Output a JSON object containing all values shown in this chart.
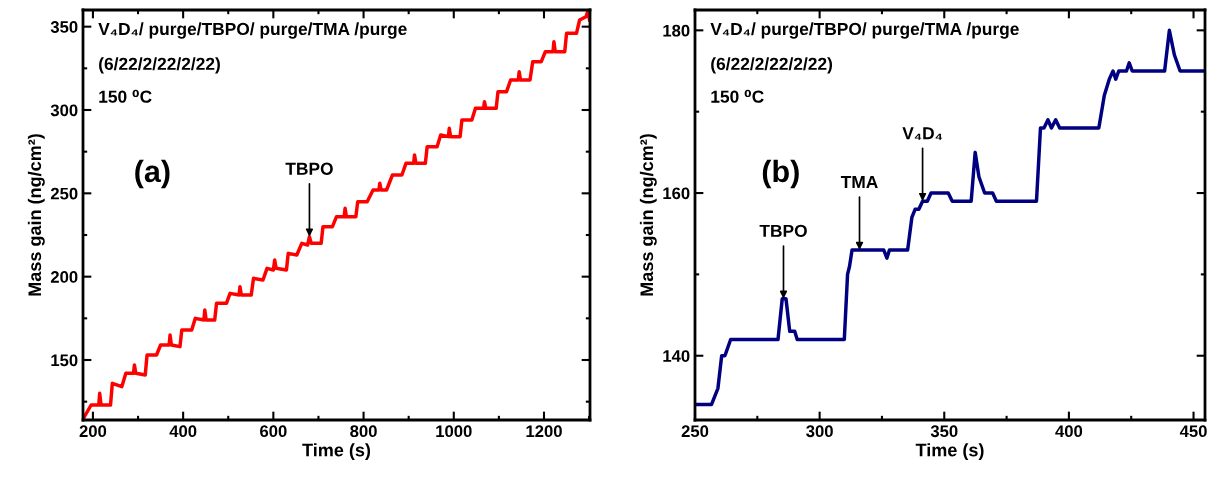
{
  "chart_data": [
    {
      "type": "line",
      "xlabel": "Time (s)",
      "ylabel": "Mass gain (ng/cm²)",
      "annotations": [
        "V₄D₄/ purge/TBPO/ purge/TMA /purge",
        "(6/22/2/22/2/22)",
        "150 ⁰C",
        "(a)",
        {
          "text": "TBPO",
          "x": 680,
          "y": 224
        }
      ],
      "series": [
        {
          "color": "#ff0000",
          "x": [
            179,
            196,
            213,
            215,
            218,
            239,
            243,
            264,
            273,
            290,
            292,
            295,
            316,
            320,
            341,
            350,
            369,
            371,
            374,
            393,
            397,
            419,
            427,
            446,
            448,
            451,
            470,
            474,
            496,
            504,
            524,
            526,
            529,
            551,
            556,
            577,
            586,
            600,
            603,
            606,
            629,
            633,
            652,
            663,
            676,
            680,
            684,
            706,
            710,
            731,
            740,
            757,
            759,
            762,
            783,
            787,
            808,
            821,
            834,
            836,
            839,
            851,
            864,
            885,
            894,
            911,
            913,
            916,
            937,
            941,
            963,
            971,
            988,
            990,
            993,
            1014,
            1018,
            1040,
            1048,
            1066,
            1068,
            1071,
            1094,
            1098,
            1117,
            1126,
            1143,
            1145,
            1148,
            1169,
            1175,
            1194,
            1203,
            1220,
            1222,
            1225,
            1246,
            1250,
            1272,
            1279,
            1293,
            1297,
            1301
          ],
          "values": [
            115,
            123,
            123,
            130,
            123,
            123,
            136,
            134,
            142,
            142,
            147,
            142,
            141,
            153,
            153,
            159,
            159,
            165,
            159,
            158,
            168,
            168,
            175,
            174,
            180,
            174,
            174,
            184,
            184,
            190,
            189,
            194,
            189,
            189,
            199,
            198,
            205,
            204,
            210,
            205,
            204,
            214,
            213,
            220,
            219,
            224,
            220,
            220,
            230,
            230,
            236,
            236,
            241,
            236,
            236,
            245,
            245,
            252,
            252,
            256,
            252,
            252,
            261,
            261,
            268,
            268,
            273,
            268,
            268,
            278,
            278,
            285,
            284,
            289,
            284,
            284,
            294,
            294,
            301,
            301,
            305,
            301,
            301,
            311,
            311,
            318,
            318,
            323,
            318,
            318,
            329,
            329,
            335,
            335,
            341,
            335,
            335,
            346,
            346,
            354,
            356,
            359,
            354
          ]
        }
      ],
      "xlim": [
        178,
        1302
      ],
      "ylim": [
        114,
        360
      ],
      "xticks": [
        200,
        {
          "value": 300,
          "label": null
        },
        400,
        {
          "value": 500,
          "label": null
        },
        600,
        {
          "value": 700,
          "label": null
        },
        800,
        {
          "value": 900,
          "label": null
        },
        1000,
        {
          "value": 1100,
          "label": null
        },
        1200,
        {
          "value": 1300,
          "label": null
        }
      ],
      "yticks": [
        {
          "value": 125,
          "label": null
        },
        150,
        {
          "value": 175,
          "label": null
        },
        200,
        {
          "value": 225,
          "label": null
        },
        250,
        {
          "value": 275,
          "label": null
        },
        300,
        {
          "value": 325,
          "label": null
        },
        350
      ]
    },
    {
      "type": "line",
      "xlabel": "Time (s)",
      "ylabel": "Mass gain (ng/cm²)",
      "annotations": [
        "V₄D₄/ purge/TBPO/ purge/TMA /purge",
        "(6/22/2/22/2/22)",
        "150 ⁰C",
        "(b)",
        {
          "text": "TBPO",
          "x": 285.5,
          "y": 147
        },
        {
          "text": "TMA",
          "x": 316,
          "y": 153
        },
        {
          "text": "V₄D₄",
          "x": 341.3,
          "y": 159
        }
      ],
      "series": [
        {
          "color": "#000080",
          "x": [
            250,
            256.6,
            259.2,
            260.7,
            262,
            264.3,
            283.3,
            285,
            286.5,
            288,
            290,
            291,
            309.9,
            311.2,
            312,
            313,
            325.7,
            327,
            328,
            335.3,
            337,
            338.3,
            339.8,
            341.3,
            343.2,
            344.7,
            351.6,
            353.2,
            360.8,
            362.4,
            363.9,
            366.2,
            369.4,
            370.9,
            387,
            388.6,
            390,
            391.6,
            393,
            394.7,
            396.3,
            412,
            414.2,
            416.2,
            417.7,
            418.8,
            420,
            423.1,
            424.2,
            425.4,
            438.4,
            440.3,
            442.3,
            444.6,
            454.6
          ],
          "values": [
            134,
            134,
            136,
            140,
            140,
            142,
            142,
            147,
            147,
            143,
            143,
            142,
            142,
            150,
            151,
            153,
            153,
            152,
            153,
            153,
            157,
            158,
            158,
            159,
            159,
            160,
            160,
            159,
            159,
            165,
            162,
            160,
            160,
            159,
            159,
            168,
            168,
            169,
            168,
            169,
            168,
            168,
            172,
            174,
            175,
            174,
            175,
            175,
            176,
            175,
            175,
            180,
            177,
            175,
            175
          ]
        }
      ],
      "xlim": [
        250,
        454.6
      ],
      "ylim": [
        132.1,
        182.5
      ],
      "xticks": [
        250,
        {
          "value": 275,
          "label": null
        },
        300,
        {
          "value": 325,
          "label": null
        },
        350,
        {
          "value": 375,
          "label": null
        },
        400,
        {
          "value": 425,
          "label": null
        },
        450
      ],
      "yticks": [
        140,
        {
          "value": 150,
          "label": null
        },
        160,
        {
          "value": 170,
          "label": null
        },
        180
      ]
    }
  ]
}
